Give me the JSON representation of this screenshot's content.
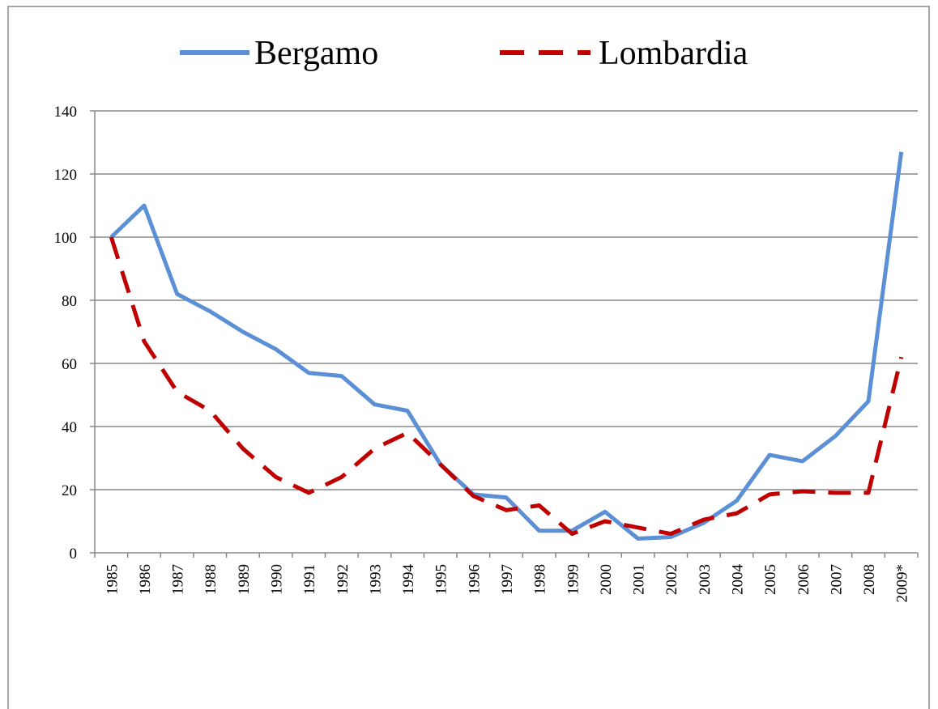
{
  "chart_data": {
    "type": "line",
    "categories": [
      "1985",
      "1986",
      "1987",
      "1988",
      "1989",
      "1990",
      "1991",
      "1992",
      "1993",
      "1994",
      "1995",
      "1996",
      "1997",
      "1998",
      "1999",
      "2000",
      "2001",
      "2002",
      "2003",
      "2004",
      "2005",
      "2006",
      "2007",
      "2008",
      "2009*"
    ],
    "series": [
      {
        "name": "Bergamo",
        "color": "#5b8fd6",
        "dash": "solid",
        "values": [
          100,
          110,
          82,
          76.5,
          70,
          64.5,
          57,
          56,
          47,
          45,
          28,
          18.5,
          17.5,
          7,
          7,
          13,
          4.5,
          5,
          9.5,
          16.5,
          31,
          29,
          37,
          48,
          127
        ]
      },
      {
        "name": "Lombardia",
        "color": "#c00000",
        "dash": "dashed",
        "values": [
          100,
          67,
          51,
          45,
          33,
          24,
          19,
          24,
          33,
          38,
          28,
          18,
          13.5,
          15,
          6,
          10,
          8,
          6,
          10.5,
          12.5,
          18.5,
          19.5,
          19,
          19,
          62
        ]
      }
    ],
    "ylim": [
      0,
      140
    ],
    "yticks": [
      0,
      20,
      40,
      60,
      80,
      100,
      120,
      140
    ],
    "grid": true,
    "legend": "top"
  }
}
